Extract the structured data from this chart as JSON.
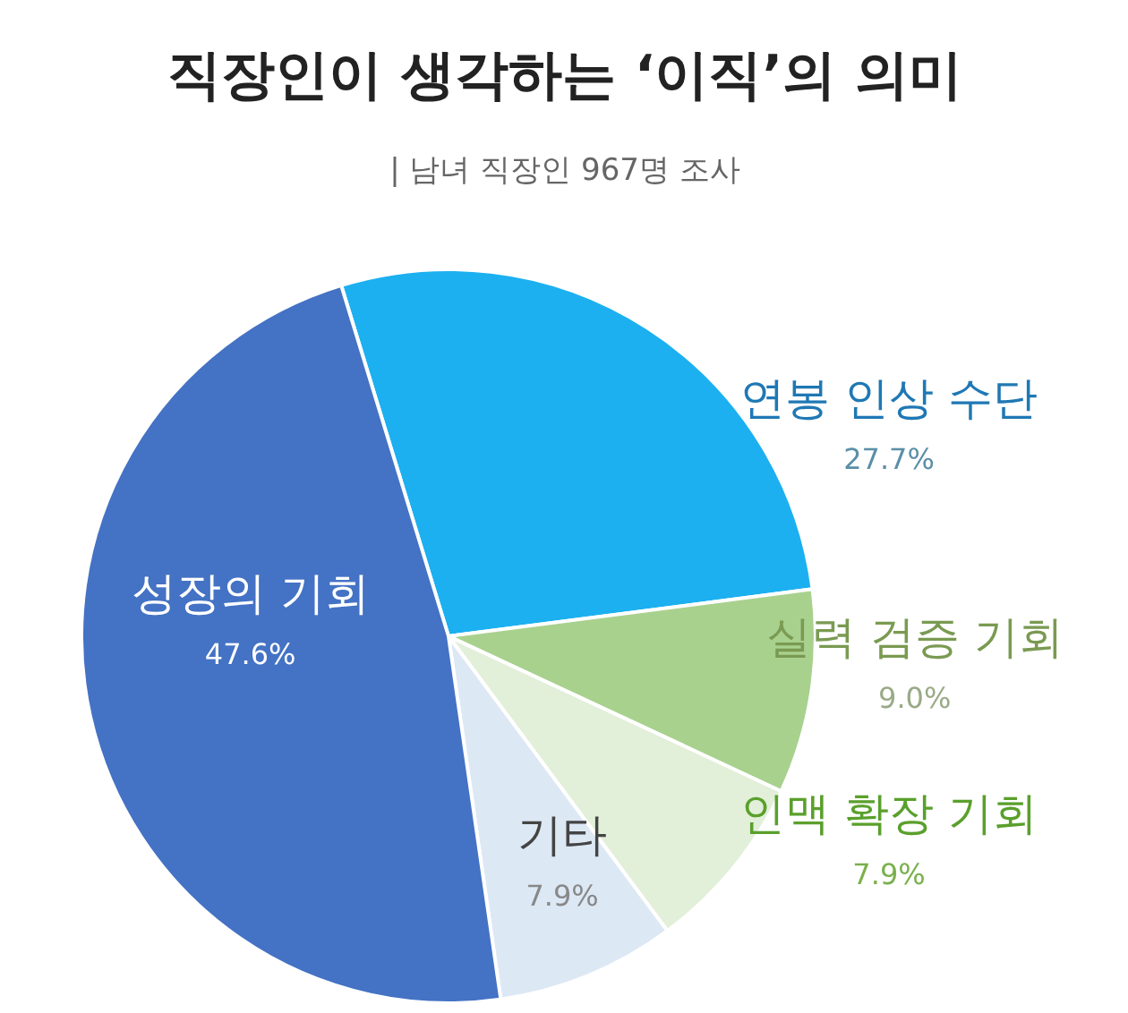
{
  "chart_data": {
    "type": "pie",
    "title": "직장인이 생각하는 ‘이직’의 의미",
    "subtitle": "| 남녀 직장인 967명 조사",
    "categories": [
      "연봉 인상 수단",
      "실력 검증 기회",
      "인맥 확장 기회",
      "기타",
      "성장의 기회"
    ],
    "values": [
      27.7,
      9.0,
      7.9,
      7.9,
      47.6
    ],
    "colors": [
      "#1cb0f0",
      "#a9d18e",
      "#e2efd9",
      "#dde8f5",
      "#4472c4"
    ],
    "value_labels": [
      "27.7%",
      "9.0%",
      "7.9%",
      "7.9%",
      "47.6%"
    ]
  }
}
